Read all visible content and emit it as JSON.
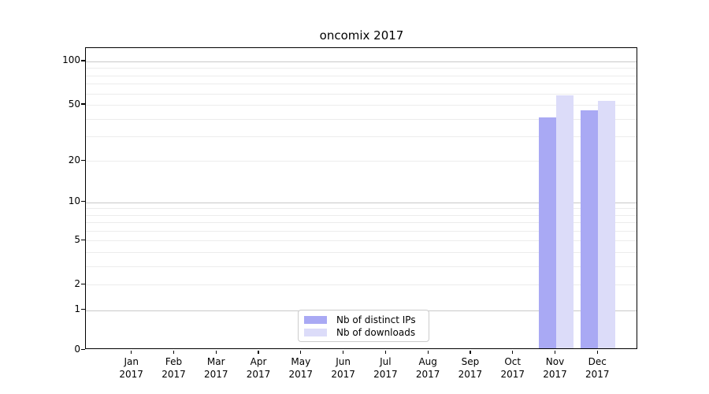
{
  "chart_data": {
    "type": "bar",
    "title": "oncomix 2017",
    "x_axis": {
      "months": [
        "Jan",
        "Feb",
        "Mar",
        "Apr",
        "May",
        "Jun",
        "Jul",
        "Aug",
        "Sep",
        "Oct",
        "Nov",
        "Dec"
      ],
      "year": "2017"
    },
    "y_axis": {
      "scale": "log1p",
      "tick_labels": [
        0,
        1,
        2,
        5,
        10,
        20,
        50,
        100
      ],
      "gridlines_major": [
        1,
        10,
        100
      ],
      "gridlines_minor": [
        2,
        3,
        4,
        5,
        6,
        7,
        8,
        9,
        20,
        30,
        40,
        50,
        60,
        70,
        80,
        90
      ],
      "range": [
        0,
        120
      ],
      "grid": "on"
    },
    "series": [
      {
        "name": "Nb of distinct IPs",
        "color": "#a9a9f4",
        "values": [
          null,
          null,
          null,
          null,
          null,
          null,
          null,
          null,
          null,
          null,
          41,
          46
        ]
      },
      {
        "name": "Nb of downloads",
        "color": "#dcdcf9",
        "values": [
          null,
          null,
          null,
          null,
          null,
          null,
          null,
          null,
          null,
          null,
          58,
          53
        ]
      }
    ],
    "legend": {
      "position": "bottom-center-inside",
      "entries": [
        "Nb of distinct IPs",
        "Nb of downloads"
      ]
    }
  },
  "colors": {
    "ips_bar": "#a9a9f4",
    "downloads_bar": "#dcdcf9",
    "gridline_major": "#c9c9c9",
    "gridline_minor": "#ececec",
    "axis": "#000000",
    "legend_border": "#cccccc",
    "background": "#ffffff"
  }
}
